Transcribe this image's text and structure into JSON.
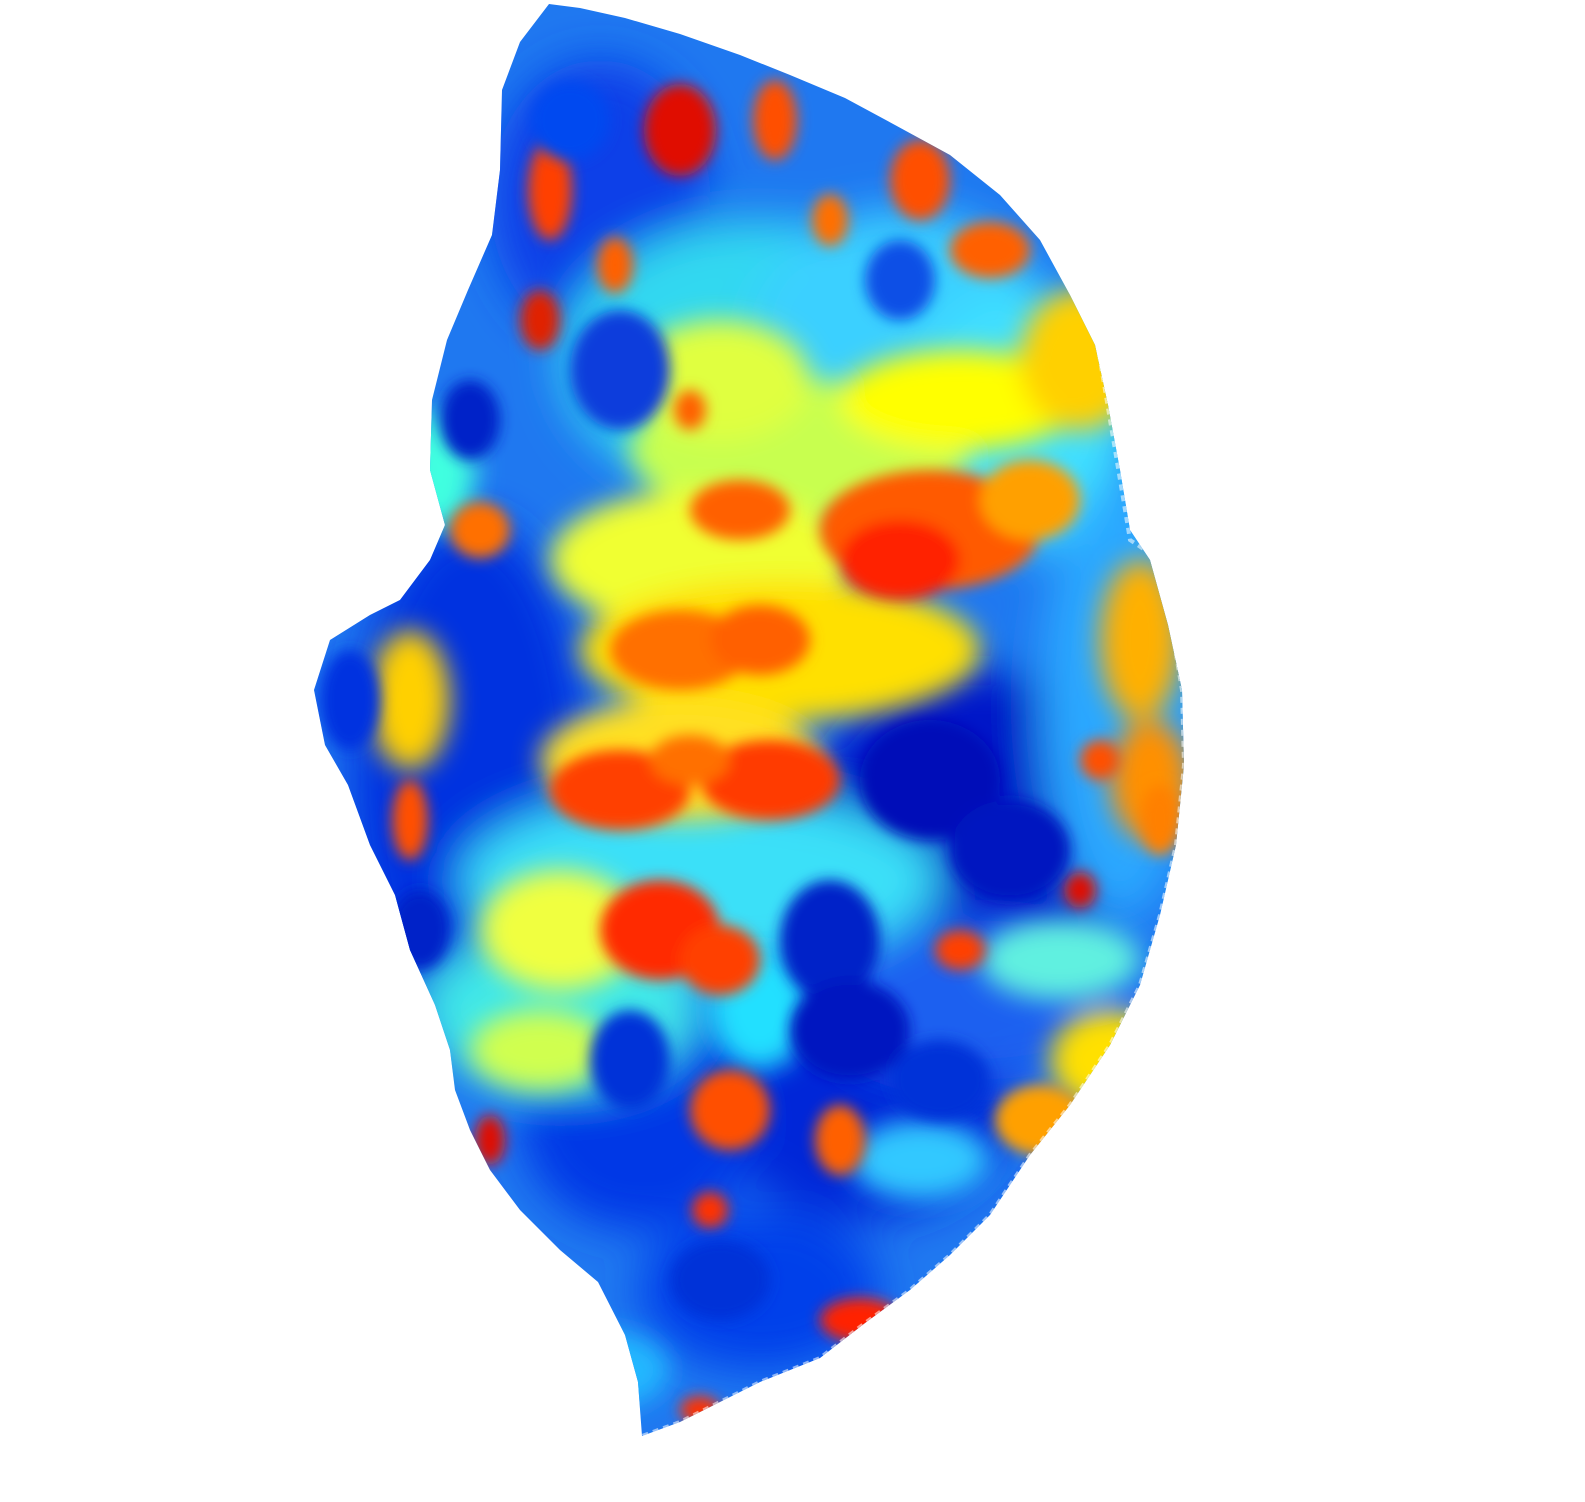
{
  "figure": {
    "type": "surface-heatmap",
    "background": "#ffffff",
    "colormap": "jet",
    "colormap_stops": [
      "#0000c8",
      "#0050ff",
      "#00c8ff",
      "#00ffff",
      "#c8ff50",
      "#ffff00",
      "#ffb000",
      "#ff6000",
      "#e00000"
    ],
    "labels": "none",
    "colorbar": "none",
    "axes": "none"
  }
}
